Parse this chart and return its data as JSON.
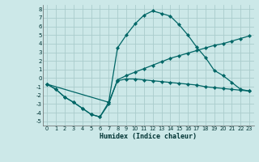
{
  "xlabel": "Humidex (Indice chaleur)",
  "background_color": "#cce8e8",
  "grid_color": "#aacccc",
  "line_color": "#006666",
  "xlim": [
    -0.5,
    23.5
  ],
  "ylim": [
    -5.5,
    8.5
  ],
  "xticks": [
    0,
    1,
    2,
    3,
    4,
    5,
    6,
    7,
    8,
    9,
    10,
    11,
    12,
    13,
    14,
    15,
    16,
    17,
    18,
    19,
    20,
    21,
    22,
    23
  ],
  "yticks": [
    -5,
    -4,
    -3,
    -2,
    -1,
    0,
    1,
    2,
    3,
    4,
    5,
    6,
    7,
    8
  ],
  "line1_x": [
    0,
    1,
    2,
    3,
    4,
    5,
    6,
    7,
    8,
    9,
    10,
    11,
    12,
    13,
    14,
    15,
    16,
    17,
    18,
    19,
    20,
    21,
    22,
    23
  ],
  "line1_y": [
    -0.7,
    -1.3,
    -2.2,
    -2.8,
    -3.5,
    -4.2,
    -4.5,
    -2.8,
    -0.3,
    -0.1,
    -0.1,
    -0.2,
    -0.3,
    -0.4,
    -0.5,
    -0.6,
    -0.7,
    -0.8,
    -1.0,
    -1.1,
    -1.2,
    -1.3,
    -1.4,
    -1.5
  ],
  "line2_x": [
    0,
    1,
    2,
    3,
    4,
    5,
    6,
    7,
    8,
    9,
    10,
    11,
    12,
    13,
    14,
    15,
    16,
    17,
    18,
    19,
    20,
    21,
    22,
    23
  ],
  "line2_y": [
    -0.7,
    -1.3,
    -2.2,
    -2.8,
    -3.5,
    -4.2,
    -4.5,
    -3.0,
    -0.2,
    0.3,
    0.7,
    1.1,
    1.5,
    1.9,
    2.3,
    2.6,
    2.9,
    3.2,
    3.5,
    3.8,
    4.0,
    4.3,
    4.6,
    4.9
  ],
  "line3_x": [
    0,
    7,
    8,
    9,
    10,
    11,
    12,
    13,
    14,
    15,
    16,
    17,
    18,
    19,
    20,
    21,
    22,
    23
  ],
  "line3_y": [
    -0.7,
    -2.8,
    3.5,
    5.0,
    6.3,
    7.3,
    7.8,
    7.5,
    7.2,
    6.2,
    5.0,
    3.6,
    2.4,
    0.9,
    0.3,
    -0.5,
    -1.3,
    -1.5
  ]
}
